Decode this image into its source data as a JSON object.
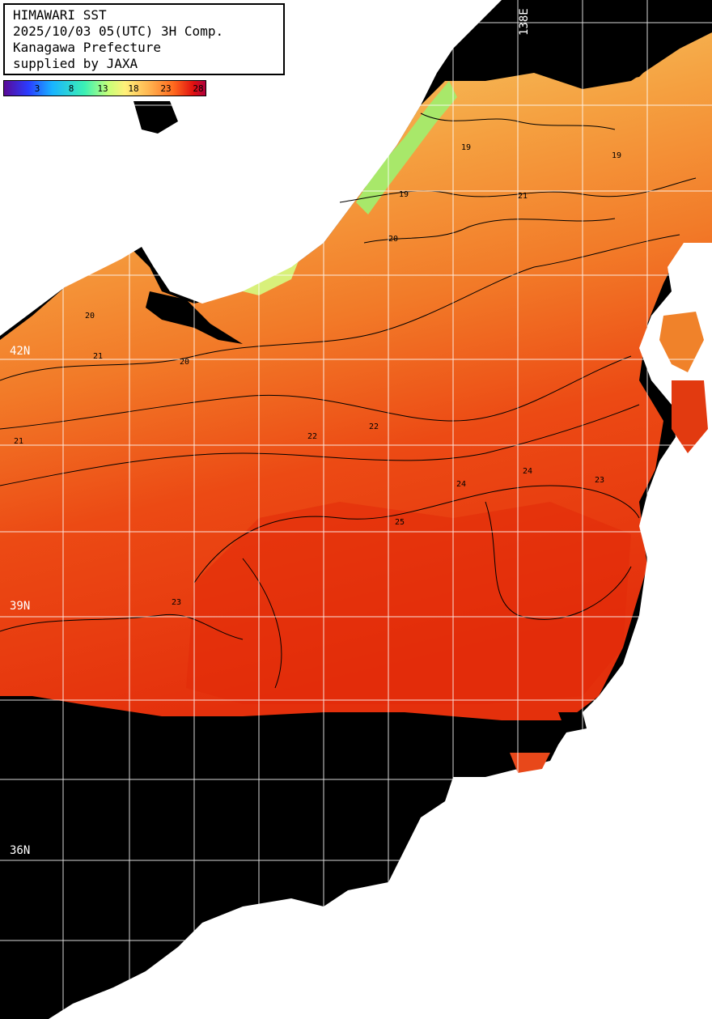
{
  "header": {
    "lines": [
      "HIMAWARI SST",
      "2025/10/03 05(UTC) 3H Comp.",
      "Kanagawa Prefecture",
      "supplied by JAXA"
    ]
  },
  "scale": {
    "ticks": [
      "3",
      "8",
      "13",
      "18",
      "23",
      "28"
    ]
  },
  "grid": {
    "lat_labels": [
      "42N",
      "39N",
      "36N"
    ],
    "lon_labels": [
      "138E"
    ]
  },
  "contours": {
    "labels": [
      "19",
      "19",
      "19",
      "20",
      "20",
      "20",
      "21",
      "21",
      "21",
      "22",
      "22",
      "23",
      "23",
      "24",
      "24",
      "25"
    ]
  },
  "colors": {
    "land": "#ffffff",
    "no_data": "#000000",
    "grid": "#ffffff",
    "contour": "#000000",
    "sst_cool": "#f6d56c",
    "sst_mid": "#f5932f",
    "sst_warm": "#e8330f"
  }
}
